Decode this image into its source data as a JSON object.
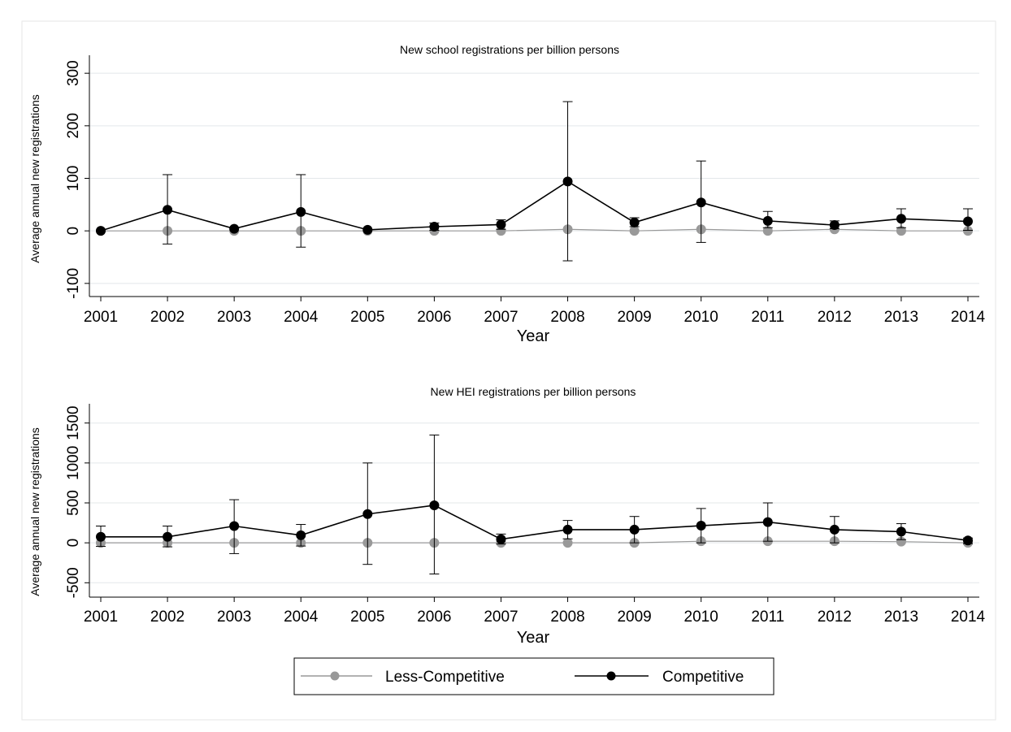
{
  "chart_data": [
    {
      "type": "line",
      "title": "New school registrations per billion persons",
      "xlabel": "Year",
      "ylabel": "Average annual new registrations",
      "categories": [
        "2001",
        "2002",
        "2003",
        "2004",
        "2005",
        "2006",
        "2007",
        "2008",
        "2009",
        "2010",
        "2011",
        "2012",
        "2013",
        "2014"
      ],
      "yticks": [
        "-100",
        "0",
        "100",
        "200",
        "300"
      ],
      "ylim": [
        -125,
        325
      ],
      "grid": true,
      "series": [
        {
          "name": "Less-Competitive",
          "color": "#999999",
          "values": [
            0,
            0,
            0,
            0,
            0,
            0,
            0,
            3,
            0,
            3,
            0,
            3,
            0,
            0
          ]
        },
        {
          "name": "Competitive",
          "color": "#000000",
          "values": [
            0,
            40,
            4,
            36,
            2,
            8,
            12,
            94,
            16,
            54,
            19,
            11,
            23,
            18
          ],
          "error_low": [
            null,
            -25,
            null,
            -31,
            null,
            1,
            3,
            -57,
            8,
            -22,
            6,
            4,
            6,
            1
          ],
          "error_high": [
            null,
            107,
            null,
            107,
            null,
            15,
            21,
            246,
            25,
            133,
            37,
            19,
            42,
            42
          ]
        }
      ]
    },
    {
      "type": "line",
      "title": "New HEI registrations per billion persons",
      "xlabel": "Year",
      "ylabel": "Average annual new registrations",
      "categories": [
        "2001",
        "2002",
        "2003",
        "2004",
        "2005",
        "2006",
        "2007",
        "2008",
        "2009",
        "2010",
        "2011",
        "2012",
        "2013",
        "2014"
      ],
      "yticks": [
        "-500",
        "0",
        "500",
        "1000",
        "1500"
      ],
      "ylim": [
        -680,
        1680
      ],
      "grid": true,
      "series": [
        {
          "name": "Less-Competitive",
          "color": "#999999",
          "values": [
            0,
            0,
            0,
            0,
            0,
            0,
            0,
            0,
            0,
            20,
            20,
            20,
            15,
            0
          ]
        },
        {
          "name": "Competitive",
          "color": "#000000",
          "values": [
            75,
            75,
            210,
            95,
            360,
            470,
            45,
            165,
            165,
            215,
            260,
            165,
            140,
            30
          ],
          "error_low": [
            -45,
            -50,
            -135,
            -40,
            -270,
            -390,
            -15,
            50,
            0,
            0,
            20,
            0,
            40,
            -10
          ],
          "error_high": [
            210,
            210,
            540,
            230,
            1000,
            1350,
            110,
            280,
            330,
            430,
            500,
            330,
            240,
            60
          ]
        }
      ]
    }
  ],
  "legend": {
    "placement": "bottom-center",
    "items": [
      {
        "label": "Less-Competitive",
        "color": "#999999"
      },
      {
        "label": "Competitive",
        "color": "#000000"
      }
    ]
  }
}
